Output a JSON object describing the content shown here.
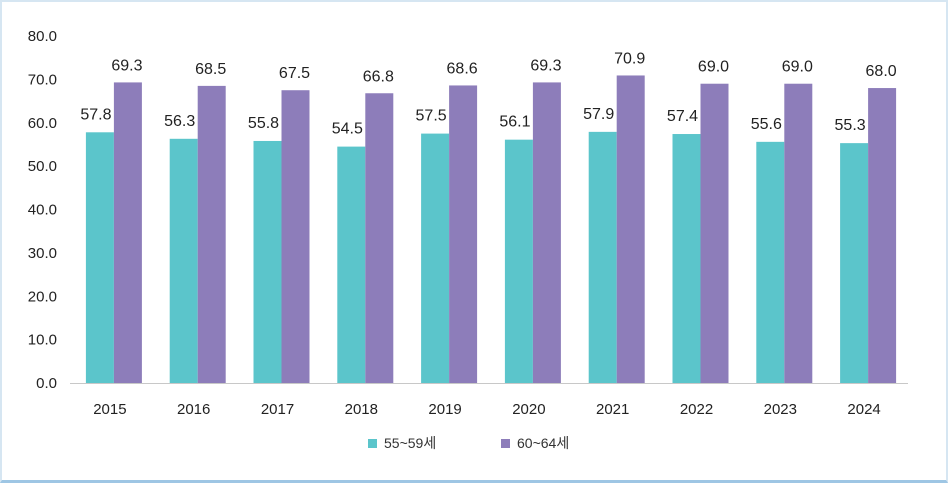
{
  "chart_data": {
    "type": "bar",
    "title": "",
    "xlabel": "",
    "ylabel": "",
    "ylim": [
      0,
      80
    ],
    "yticks": [
      "0.0",
      "10.0",
      "20.0",
      "30.0",
      "40.0",
      "50.0",
      "60.0",
      "70.0",
      "80.0"
    ],
    "grid": false,
    "legend_position": "bottom-center",
    "categories": [
      "2015",
      "2016",
      "2017",
      "2018",
      "2019",
      "2020",
      "2021",
      "2022",
      "2023",
      "2024"
    ],
    "series": [
      {
        "name": "55~59세",
        "color": "#5bc5cb",
        "values": [
          57.8,
          56.3,
          55.8,
          54.5,
          57.5,
          56.1,
          57.9,
          57.4,
          55.6,
          55.3
        ],
        "labels": [
          "57.8",
          "56.3",
          "55.8",
          "54.5",
          "57.5",
          "56.1",
          "57.9",
          "57.4",
          "55.6",
          "55.3"
        ]
      },
      {
        "name": "60~64세",
        "color": "#8d7dba",
        "values": [
          69.3,
          68.5,
          67.5,
          66.8,
          68.6,
          69.3,
          70.9,
          69.0,
          69.0,
          68.0
        ],
        "labels": [
          "69.3",
          "68.5",
          "67.5",
          "66.8",
          "68.6",
          "69.3",
          "70.9",
          "69.0",
          "69.0",
          "68.0"
        ]
      }
    ]
  }
}
